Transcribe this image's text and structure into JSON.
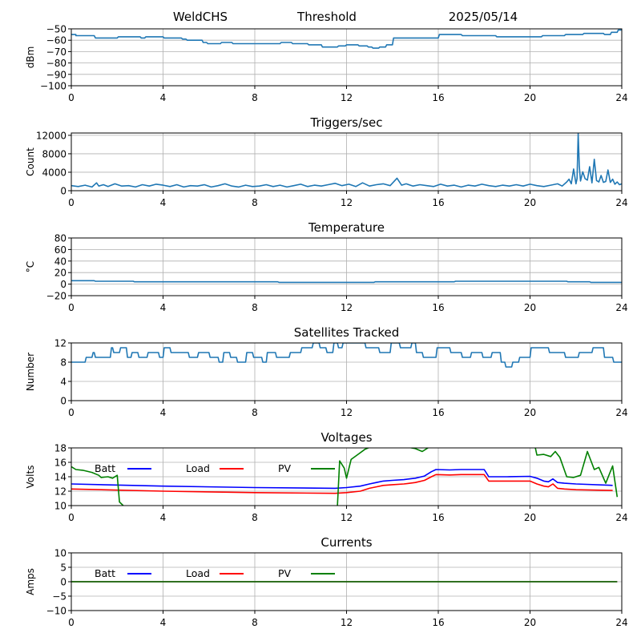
{
  "header": {
    "station": "WeldCHS",
    "panel": "Threshold",
    "date": "2025/05/14"
  },
  "chart_data": [
    {
      "id": "threshold",
      "type": "line",
      "title": "",
      "xlabel": "",
      "ylabel": "dBm",
      "xlim": [
        0,
        24
      ],
      "ylim": [
        -100,
        -50
      ],
      "xticks": [
        0,
        4,
        8,
        12,
        16,
        20,
        24
      ],
      "xtick_labels": [
        "0",
        "4",
        "8",
        "12",
        "16",
        "20",
        "24"
      ],
      "yticks": [
        -100,
        -90,
        -80,
        -70,
        -60,
        -50
      ],
      "ytick_labels": [
        "−100",
        "−90",
        "−80",
        "−70",
        "−60",
        "−50"
      ],
      "grid": true,
      "legend": "none",
      "series": [
        {
          "color": "#1f77b4",
          "x": [
            0,
            0.2,
            0.2,
            1,
            1.05,
            2,
            2.05,
            3,
            3.05,
            3.2,
            3.25,
            4,
            4.05,
            4.8,
            4.85,
            5,
            5.05,
            5.7,
            5.75,
            5.9,
            5.95,
            6.5,
            6.55,
            7,
            7.05,
            9.1,
            9.15,
            9.6,
            9.65,
            10.3,
            10.35,
            10.9,
            10.95,
            11.6,
            11.65,
            11.95,
            12,
            12.5,
            12.55,
            12.9,
            12.95,
            13.1,
            13.15,
            13.4,
            13.45,
            13.7,
            13.75,
            14,
            14.05,
            16,
            16.05,
            17,
            17.05,
            18.5,
            18.55,
            20.5,
            20.55,
            21.5,
            21.55,
            22.3,
            22.35,
            23.2,
            23.25,
            23.5,
            23.55,
            23.8,
            23.85,
            24
          ],
          "y": [
            -55,
            -55,
            -56,
            -56,
            -58,
            -58,
            -57,
            -57,
            -58,
            -58,
            -57,
            -57,
            -58,
            -58,
            -59,
            -59,
            -60,
            -60,
            -62,
            -62,
            -63,
            -63,
            -62,
            -62,
            -63,
            -63,
            -62,
            -62,
            -63,
            -63,
            -64,
            -64,
            -66,
            -66,
            -65,
            -65,
            -64,
            -64,
            -65,
            -65,
            -66,
            -66,
            -67,
            -67,
            -66,
            -66,
            -64,
            -64,
            -58,
            -58,
            -55,
            -55,
            -56,
            -56,
            -57,
            -57,
            -56,
            -56,
            -55,
            -55,
            -54,
            -54,
            -55,
            -55,
            -53,
            -53,
            -51,
            -51
          ]
        }
      ]
    },
    {
      "id": "triggers",
      "type": "line",
      "title": "Triggers/sec",
      "xlabel": "",
      "ylabel": "Count",
      "xlim": [
        0,
        24
      ],
      "ylim": [
        0,
        12500
      ],
      "xticks": [
        0,
        4,
        8,
        12,
        16,
        20,
        24
      ],
      "xtick_labels": [
        "0",
        "4",
        "8",
        "12",
        "16",
        "20",
        "24"
      ],
      "yticks": [
        0,
        4000,
        8000,
        12000
      ],
      "ytick_labels": [
        "0",
        "4000",
        "8000",
        "12000"
      ],
      "grid": true,
      "legend": "none",
      "series": [
        {
          "color": "#1f77b4",
          "x": [
            0,
            0.3,
            0.6,
            0.9,
            1.1,
            1.2,
            1.4,
            1.6,
            1.9,
            2.2,
            2.5,
            2.8,
            3.1,
            3.4,
            3.7,
            4,
            4.3,
            4.6,
            4.9,
            5.2,
            5.5,
            5.8,
            6.1,
            6.4,
            6.7,
            7,
            7.3,
            7.6,
            7.9,
            8.2,
            8.5,
            8.8,
            9.1,
            9.4,
            9.7,
            10,
            10.3,
            10.6,
            10.9,
            11.2,
            11.5,
            11.8,
            12.1,
            12.4,
            12.7,
            13,
            13.3,
            13.6,
            13.9,
            14.2,
            14.4,
            14.6,
            14.9,
            15.2,
            15.5,
            15.8,
            16.1,
            16.4,
            16.7,
            17,
            17.3,
            17.6,
            17.9,
            18.2,
            18.5,
            18.8,
            19.1,
            19.4,
            19.7,
            20,
            20.3,
            20.6,
            20.9,
            21.2,
            21.4,
            21.6,
            21.7,
            21.8,
            21.9,
            22,
            22.05,
            22.1,
            22.15,
            22.2,
            22.3,
            22.4,
            22.5,
            22.6,
            22.7,
            22.8,
            22.9,
            23,
            23.1,
            23.2,
            23.3,
            23.4,
            23.5,
            23.6,
            23.7,
            23.8,
            23.9,
            24
          ],
          "y": [
            1100,
            900,
            1200,
            800,
            1700,
            1000,
            1300,
            900,
            1500,
            1000,
            1100,
            800,
            1300,
            1000,
            1400,
            1200,
            900,
            1300,
            800,
            1100,
            1000,
            1300,
            800,
            1100,
            1500,
            1000,
            800,
            1200,
            900,
            1000,
            1300,
            900,
            1200,
            800,
            1100,
            1400,
            900,
            1200,
            1000,
            1300,
            1600,
            1100,
            1400,
            900,
            1700,
            1000,
            1300,
            1500,
            1100,
            2700,
            1200,
            1500,
            1000,
            1300,
            1100,
            900,
            1400,
            1000,
            1200,
            800,
            1200,
            1000,
            1400,
            1100,
            900,
            1200,
            1000,
            1300,
            1000,
            1400,
            1100,
            900,
            1200,
            1500,
            1000,
            1900,
            2500,
            1500,
            4700,
            1500,
            2600,
            12400,
            5300,
            2100,
            4100,
            2600,
            2300,
            5200,
            1700,
            6800,
            2200,
            1900,
            3300,
            1800,
            2000,
            4500,
            1800,
            2500,
            1400,
            1900,
            1300,
            1500
          ]
        }
      ]
    },
    {
      "id": "temperature",
      "type": "line",
      "title": "Temperature",
      "xlabel": "",
      "ylabel": "°C",
      "xlim": [
        0,
        24
      ],
      "ylim": [
        -20,
        80
      ],
      "xticks": [
        0,
        4,
        8,
        12,
        16,
        20,
        24
      ],
      "xtick_labels": [
        "0",
        "4",
        "8",
        "12",
        "16",
        "20",
        "24"
      ],
      "yticks": [
        -20,
        0,
        20,
        40,
        60,
        80
      ],
      "ytick_labels": [
        "−20",
        "0",
        "20",
        "40",
        "60",
        "80"
      ],
      "grid": true,
      "legend": "none",
      "series": [
        {
          "color": "#1f77b4",
          "x": [
            0,
            1,
            1.05,
            2.7,
            2.75,
            9,
            9.05,
            13.2,
            13.25,
            16.7,
            16.75,
            21.6,
            21.65,
            22.6,
            22.65,
            24
          ],
          "y": [
            6,
            6,
            5,
            5,
            4,
            4,
            3,
            3,
            4,
            4,
            5,
            5,
            4,
            4,
            3,
            3
          ]
        }
      ]
    },
    {
      "id": "satellites",
      "type": "line",
      "title": "Satellites Tracked",
      "xlabel": "",
      "ylabel": "Number",
      "xlim": [
        0,
        24
      ],
      "ylim": [
        0,
        12
      ],
      "xticks": [
        0,
        4,
        8,
        12,
        16,
        20,
        24
      ],
      "xtick_labels": [
        "0",
        "4",
        "8",
        "12",
        "16",
        "20",
        "24"
      ],
      "yticks": [
        0,
        4,
        8,
        12
      ],
      "ytick_labels": [
        "0",
        "4",
        "8",
        "12"
      ],
      "grid": true,
      "legend": "none",
      "series": [
        {
          "color": "#1f77b4",
          "x": [
            0,
            0.6,
            0.65,
            0.9,
            0.95,
            1,
            1.05,
            1.7,
            1.75,
            1.8,
            1.85,
            2.1,
            2.15,
            2.4,
            2.45,
            2.6,
            2.65,
            2.9,
            2.95,
            3.3,
            3.35,
            3.8,
            3.85,
            4,
            4.05,
            4.3,
            4.35,
            5.1,
            5.15,
            5.5,
            5.55,
            6,
            6.05,
            6.4,
            6.45,
            6.6,
            6.65,
            6.9,
            6.95,
            7.2,
            7.25,
            7.6,
            7.65,
            7.9,
            7.95,
            8.3,
            8.35,
            8.5,
            8.55,
            8.9,
            8.95,
            9.5,
            9.55,
            10,
            10.05,
            10.5,
            10.55,
            10.8,
            10.85,
            11.1,
            11.15,
            11.4,
            11.45,
            11.6,
            11.65,
            11.8,
            11.85,
            12.8,
            12.85,
            13.4,
            13.45,
            13.9,
            13.95,
            14.3,
            14.35,
            14.8,
            14.85,
            15,
            15.05,
            15.3,
            15.35,
            15.9,
            15.95,
            16.5,
            16.55,
            17,
            17.05,
            17.4,
            17.45,
            17.9,
            17.95,
            18.3,
            18.35,
            18.7,
            18.75,
            18.9,
            18.95,
            19.2,
            19.25,
            19.5,
            19.55,
            20,
            20.05,
            20.8,
            20.85,
            21.5,
            21.55,
            22.1,
            22.15,
            22.7,
            22.75,
            23.2,
            23.25,
            23.6,
            23.65,
            24
          ],
          "y": [
            8,
            8,
            9,
            9,
            10,
            10,
            9,
            9,
            11,
            11,
            10,
            10,
            11,
            11,
            9,
            9,
            10,
            10,
            9,
            9,
            10,
            10,
            9,
            9,
            11,
            11,
            10,
            10,
            9,
            9,
            10,
            10,
            9,
            9,
            8,
            8,
            10,
            10,
            9,
            9,
            8,
            8,
            10,
            10,
            9,
            9,
            8,
            8,
            10,
            10,
            9,
            9,
            10,
            10,
            11,
            11,
            12,
            12,
            11,
            11,
            10,
            10,
            12,
            12,
            11,
            11,
            12,
            12,
            11,
            11,
            10,
            10,
            12,
            12,
            11,
            11,
            12,
            12,
            10,
            10,
            9,
            9,
            11,
            11,
            10,
            10,
            9,
            9,
            10,
            10,
            9,
            9,
            10,
            10,
            8,
            8,
            7,
            7,
            8,
            8,
            9,
            9,
            11,
            11,
            10,
            10,
            9,
            9,
            10,
            10,
            11,
            11,
            9,
            9,
            8,
            8
          ]
        }
      ]
    },
    {
      "id": "voltages",
      "type": "line",
      "title": "Voltages",
      "xlabel": "",
      "ylabel": "Volts",
      "xlim": [
        0,
        24
      ],
      "ylim": [
        10,
        18
      ],
      "xticks": [
        0,
        4,
        8,
        12,
        16,
        20,
        24
      ],
      "xtick_labels": [
        "0",
        "4",
        "8",
        "12",
        "16",
        "20",
        "24"
      ],
      "yticks": [
        10,
        12,
        14,
        16,
        18
      ],
      "ytick_labels": [
        "10",
        "12",
        "14",
        "16",
        "18"
      ],
      "grid": true,
      "legend": "top-inline",
      "series": [
        {
          "name": "Batt",
          "color": "#0000ff",
          "x": [
            0,
            4,
            8,
            11.5,
            12,
            12.6,
            13,
            13.3,
            13.6,
            14,
            14.5,
            15,
            15.4,
            15.7,
            15.9,
            16.5,
            17,
            18,
            18.2,
            19,
            20,
            20.3,
            20.6,
            20.8,
            21,
            21.2,
            21.5,
            22,
            23.6
          ],
          "y": [
            13,
            12.7,
            12.5,
            12.4,
            12.5,
            12.7,
            13,
            13.2,
            13.4,
            13.5,
            13.6,
            13.8,
            14.1,
            14.7,
            15,
            14.95,
            15,
            15,
            14,
            14,
            14.05,
            13.8,
            13.4,
            13.3,
            13.7,
            13.2,
            13.1,
            13,
            12.8
          ]
        },
        {
          "name": "Load",
          "color": "#ff0000",
          "x": [
            0,
            4,
            8,
            11.5,
            12,
            12.6,
            13,
            13.3,
            13.6,
            14,
            14.5,
            15,
            15.4,
            15.7,
            15.9,
            16.5,
            17,
            18,
            18.2,
            19,
            20,
            20.3,
            20.6,
            20.8,
            21,
            21.2,
            21.5,
            22,
            23.6
          ],
          "y": [
            12.3,
            12,
            11.8,
            11.7,
            11.8,
            12,
            12.4,
            12.6,
            12.8,
            12.9,
            13,
            13.2,
            13.5,
            14,
            14.3,
            14.25,
            14.3,
            14.3,
            13.4,
            13.4,
            13.4,
            13,
            12.7,
            12.6,
            13,
            12.4,
            12.3,
            12.2,
            12.1
          ]
        },
        {
          "name": "PV",
          "color": "#008000",
          "x": [
            0,
            0.2,
            0.5,
            0.9,
            1.2,
            1.3,
            1.6,
            1.8,
            2,
            2.1,
            2.3,
            11.6,
            11.7,
            11.9,
            12,
            12.2,
            12.5,
            12.8,
            13.1,
            13.5,
            14,
            14.5,
            15,
            15.3,
            15.6,
            20.2,
            20.3,
            20.6,
            20.9,
            21.1,
            21.3,
            21.6,
            21.9,
            22.2,
            22.5,
            22.8,
            23,
            23.3,
            23.6,
            23.8
          ],
          "y": [
            15.4,
            15,
            14.9,
            14.6,
            14.2,
            13.9,
            14,
            13.8,
            14.2,
            10.5,
            9.9,
            9.9,
            16.2,
            15.2,
            13.8,
            16.4,
            17.1,
            17.8,
            18.2,
            18.4,
            18.3,
            18.2,
            17.9,
            17.5,
            18.1,
            18.5,
            17,
            17.1,
            16.8,
            17.5,
            16.7,
            14,
            13.9,
            14.2,
            17.5,
            15,
            15.3,
            13.1,
            15.5,
            11.2
          ]
        }
      ]
    },
    {
      "id": "currents",
      "type": "line",
      "title": "Currents",
      "xlabel": "",
      "ylabel": "Amps",
      "xlim": [
        0,
        24
      ],
      "ylim": [
        -10,
        10
      ],
      "xticks": [
        0,
        4,
        8,
        12,
        16,
        20,
        24
      ],
      "xtick_labels": [
        "0",
        "4",
        "8",
        "12",
        "16",
        "20",
        "24"
      ],
      "yticks": [
        -10,
        -5,
        0,
        5,
        10
      ],
      "ytick_labels": [
        "−10",
        "−5",
        "0",
        "5",
        "10"
      ],
      "grid": true,
      "legend": "top-inline",
      "series": [
        {
          "name": "Batt",
          "color": "#0000ff",
          "x": [
            0,
            23.8
          ],
          "y": [
            0,
            0
          ]
        },
        {
          "name": "Load",
          "color": "#ff0000",
          "x": [
            0,
            23.8
          ],
          "y": [
            0,
            0
          ]
        },
        {
          "name": "PV",
          "color": "#008000",
          "x": [
            0,
            23.8
          ],
          "y": [
            0,
            0
          ]
        }
      ]
    }
  ]
}
